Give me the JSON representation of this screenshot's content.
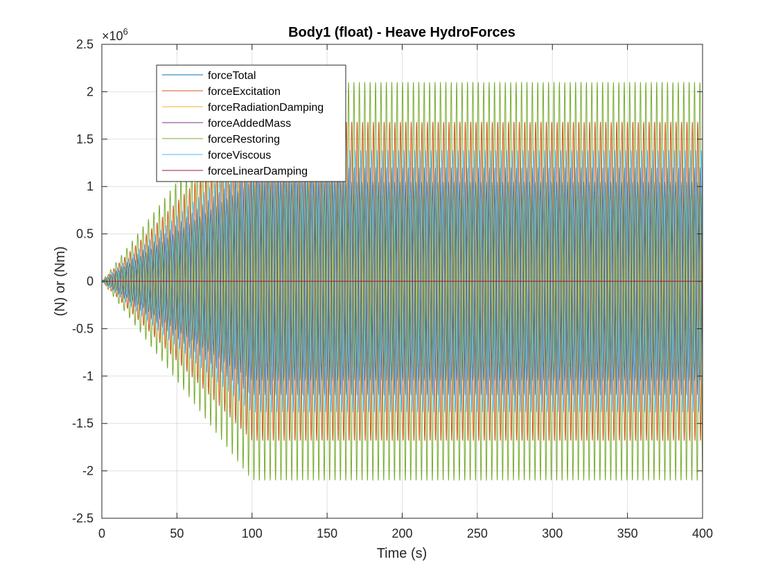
{
  "chart_data": {
    "type": "line",
    "title": "Body1 (float) - Heave HydroForces",
    "xlabel": "Time (s)",
    "ylabel": "(N) or (Nm)",
    "xlim": [
      0,
      400
    ],
    "ylim": [
      -2500000,
      2500000
    ],
    "x_ticks": [
      "0",
      "50",
      "100",
      "150",
      "200",
      "250",
      "300",
      "350",
      "400"
    ],
    "y_ticks": [
      "-2.5",
      "-2",
      "-1.5",
      "-1",
      "-0.5",
      "0",
      "0.5",
      "1",
      "1.5",
      "2",
      "2.5"
    ],
    "y_exponent_base": "×10",
    "y_exponent_power": "6",
    "grid": true,
    "legend_position": "top-left",
    "wave_period_s": 3.6,
    "ramp_end_s": 100,
    "series": [
      {
        "name": "forceTotal",
        "color": "#0072BD",
        "amplitude": 1050000,
        "phase": 0.9
      },
      {
        "name": "forceExcitation",
        "color": "#D95319",
        "amplitude": 1680000,
        "phase": 0.2
      },
      {
        "name": "forceRadiationDamping",
        "color": "#EDB120",
        "amplitude": 900000,
        "phase": 1.8
      },
      {
        "name": "forceAddedMass",
        "color": "#7E2F8E",
        "amplitude": 1200000,
        "phase": 3.3
      },
      {
        "name": "forceRestoring",
        "color": "#77AC30",
        "amplitude": 2100000,
        "phase": 3.9
      },
      {
        "name": "forceViscous",
        "color": "#4DBEEE",
        "amplitude": 1380000,
        "phase": 2.4
      },
      {
        "name": "forceLinearDamping",
        "color": "#A2142F",
        "amplitude": 0,
        "phase": 0
      }
    ]
  }
}
